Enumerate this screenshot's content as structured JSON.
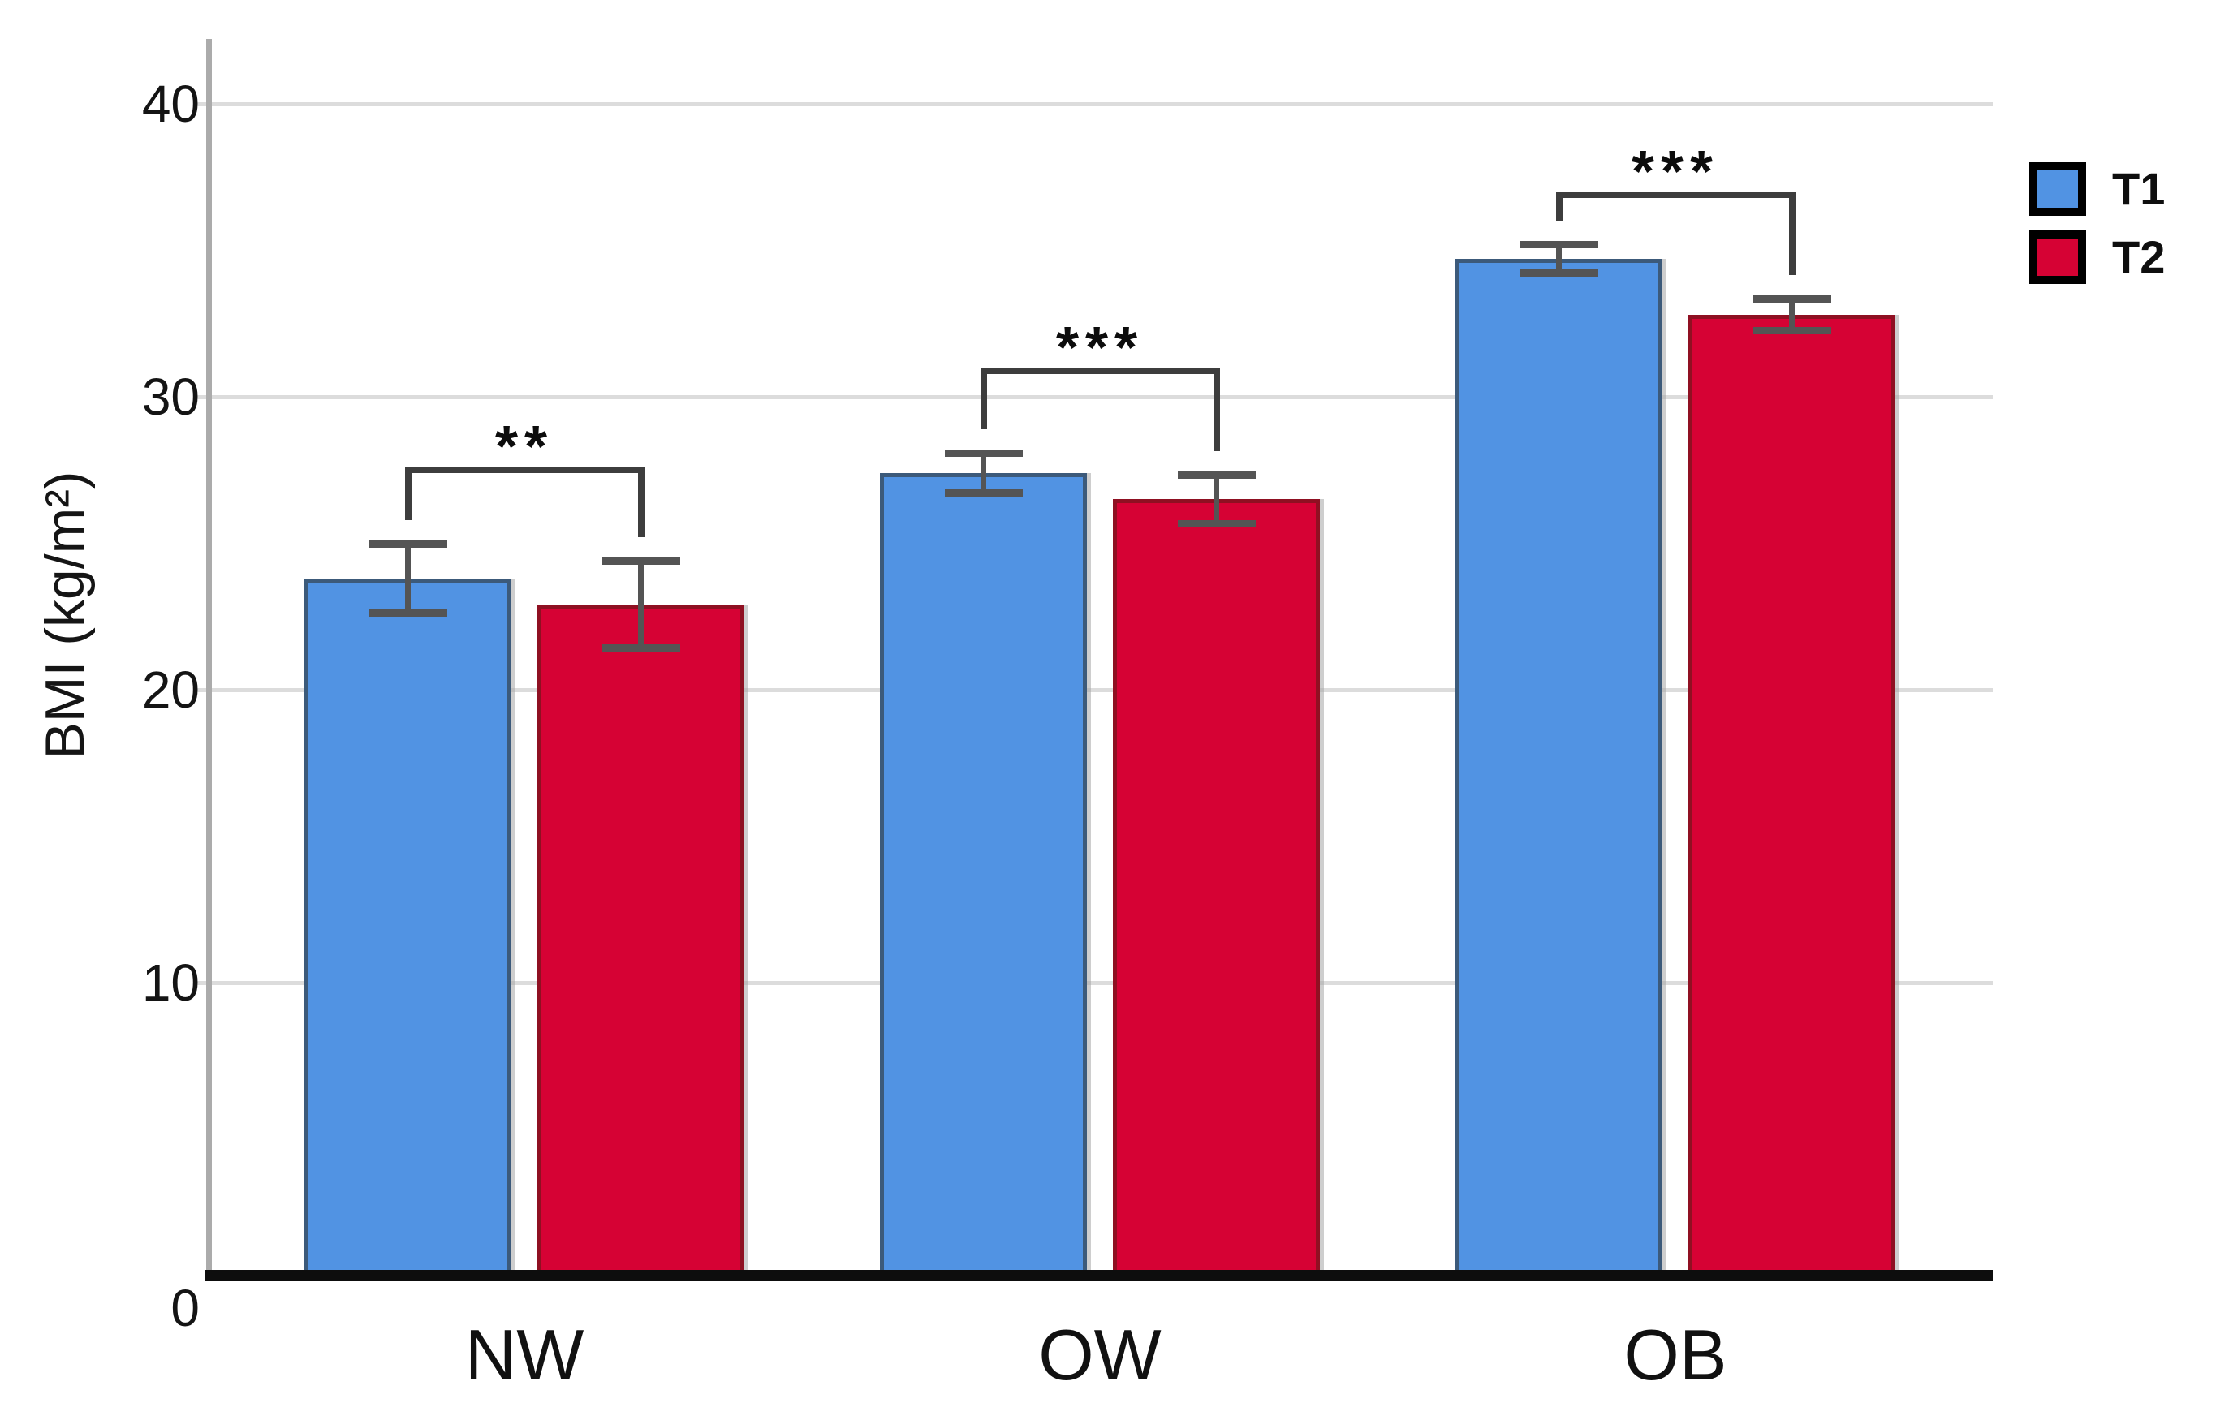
{
  "figure_title": "BMI grouped bar chart",
  "chart_data": {
    "type": "bar",
    "title": "",
    "xlabel": "",
    "ylabel": "BMI (kg/m²)",
    "ylim": [
      0,
      40
    ],
    "yticks": [
      0,
      10,
      20,
      30,
      40
    ],
    "grid": "horizontal",
    "legend_position": "top-right",
    "categories": [
      "NW",
      "OW",
      "OB"
    ],
    "series": [
      {
        "name": "T1",
        "color": "#5193e3",
        "border_color": "#3c5a7a",
        "values": [
          23.8,
          27.4,
          34.7
        ],
        "errors": [
          1.2,
          0.7,
          0.5
        ]
      },
      {
        "name": "T2",
        "color": "#d60234",
        "border_color": "#8f1022",
        "values": [
          22.9,
          26.5,
          32.8
        ],
        "errors": [
          1.5,
          0.85,
          0.55
        ]
      }
    ],
    "significance": [
      {
        "category": "NW",
        "label": "**",
        "bracket_value": 27.5
      },
      {
        "category": "OW",
        "label": "***",
        "bracket_value": 30.9
      },
      {
        "category": "OB",
        "label": "***",
        "bracket_value": 36.9
      }
    ],
    "colors": {
      "grid": "#dcdcdc",
      "axis": "#ababab",
      "baseline": "#0d0d0d",
      "bracket": "#3d3d3d",
      "error_bar": "#545454",
      "text": "#141414",
      "legend_border": "#000000"
    }
  }
}
